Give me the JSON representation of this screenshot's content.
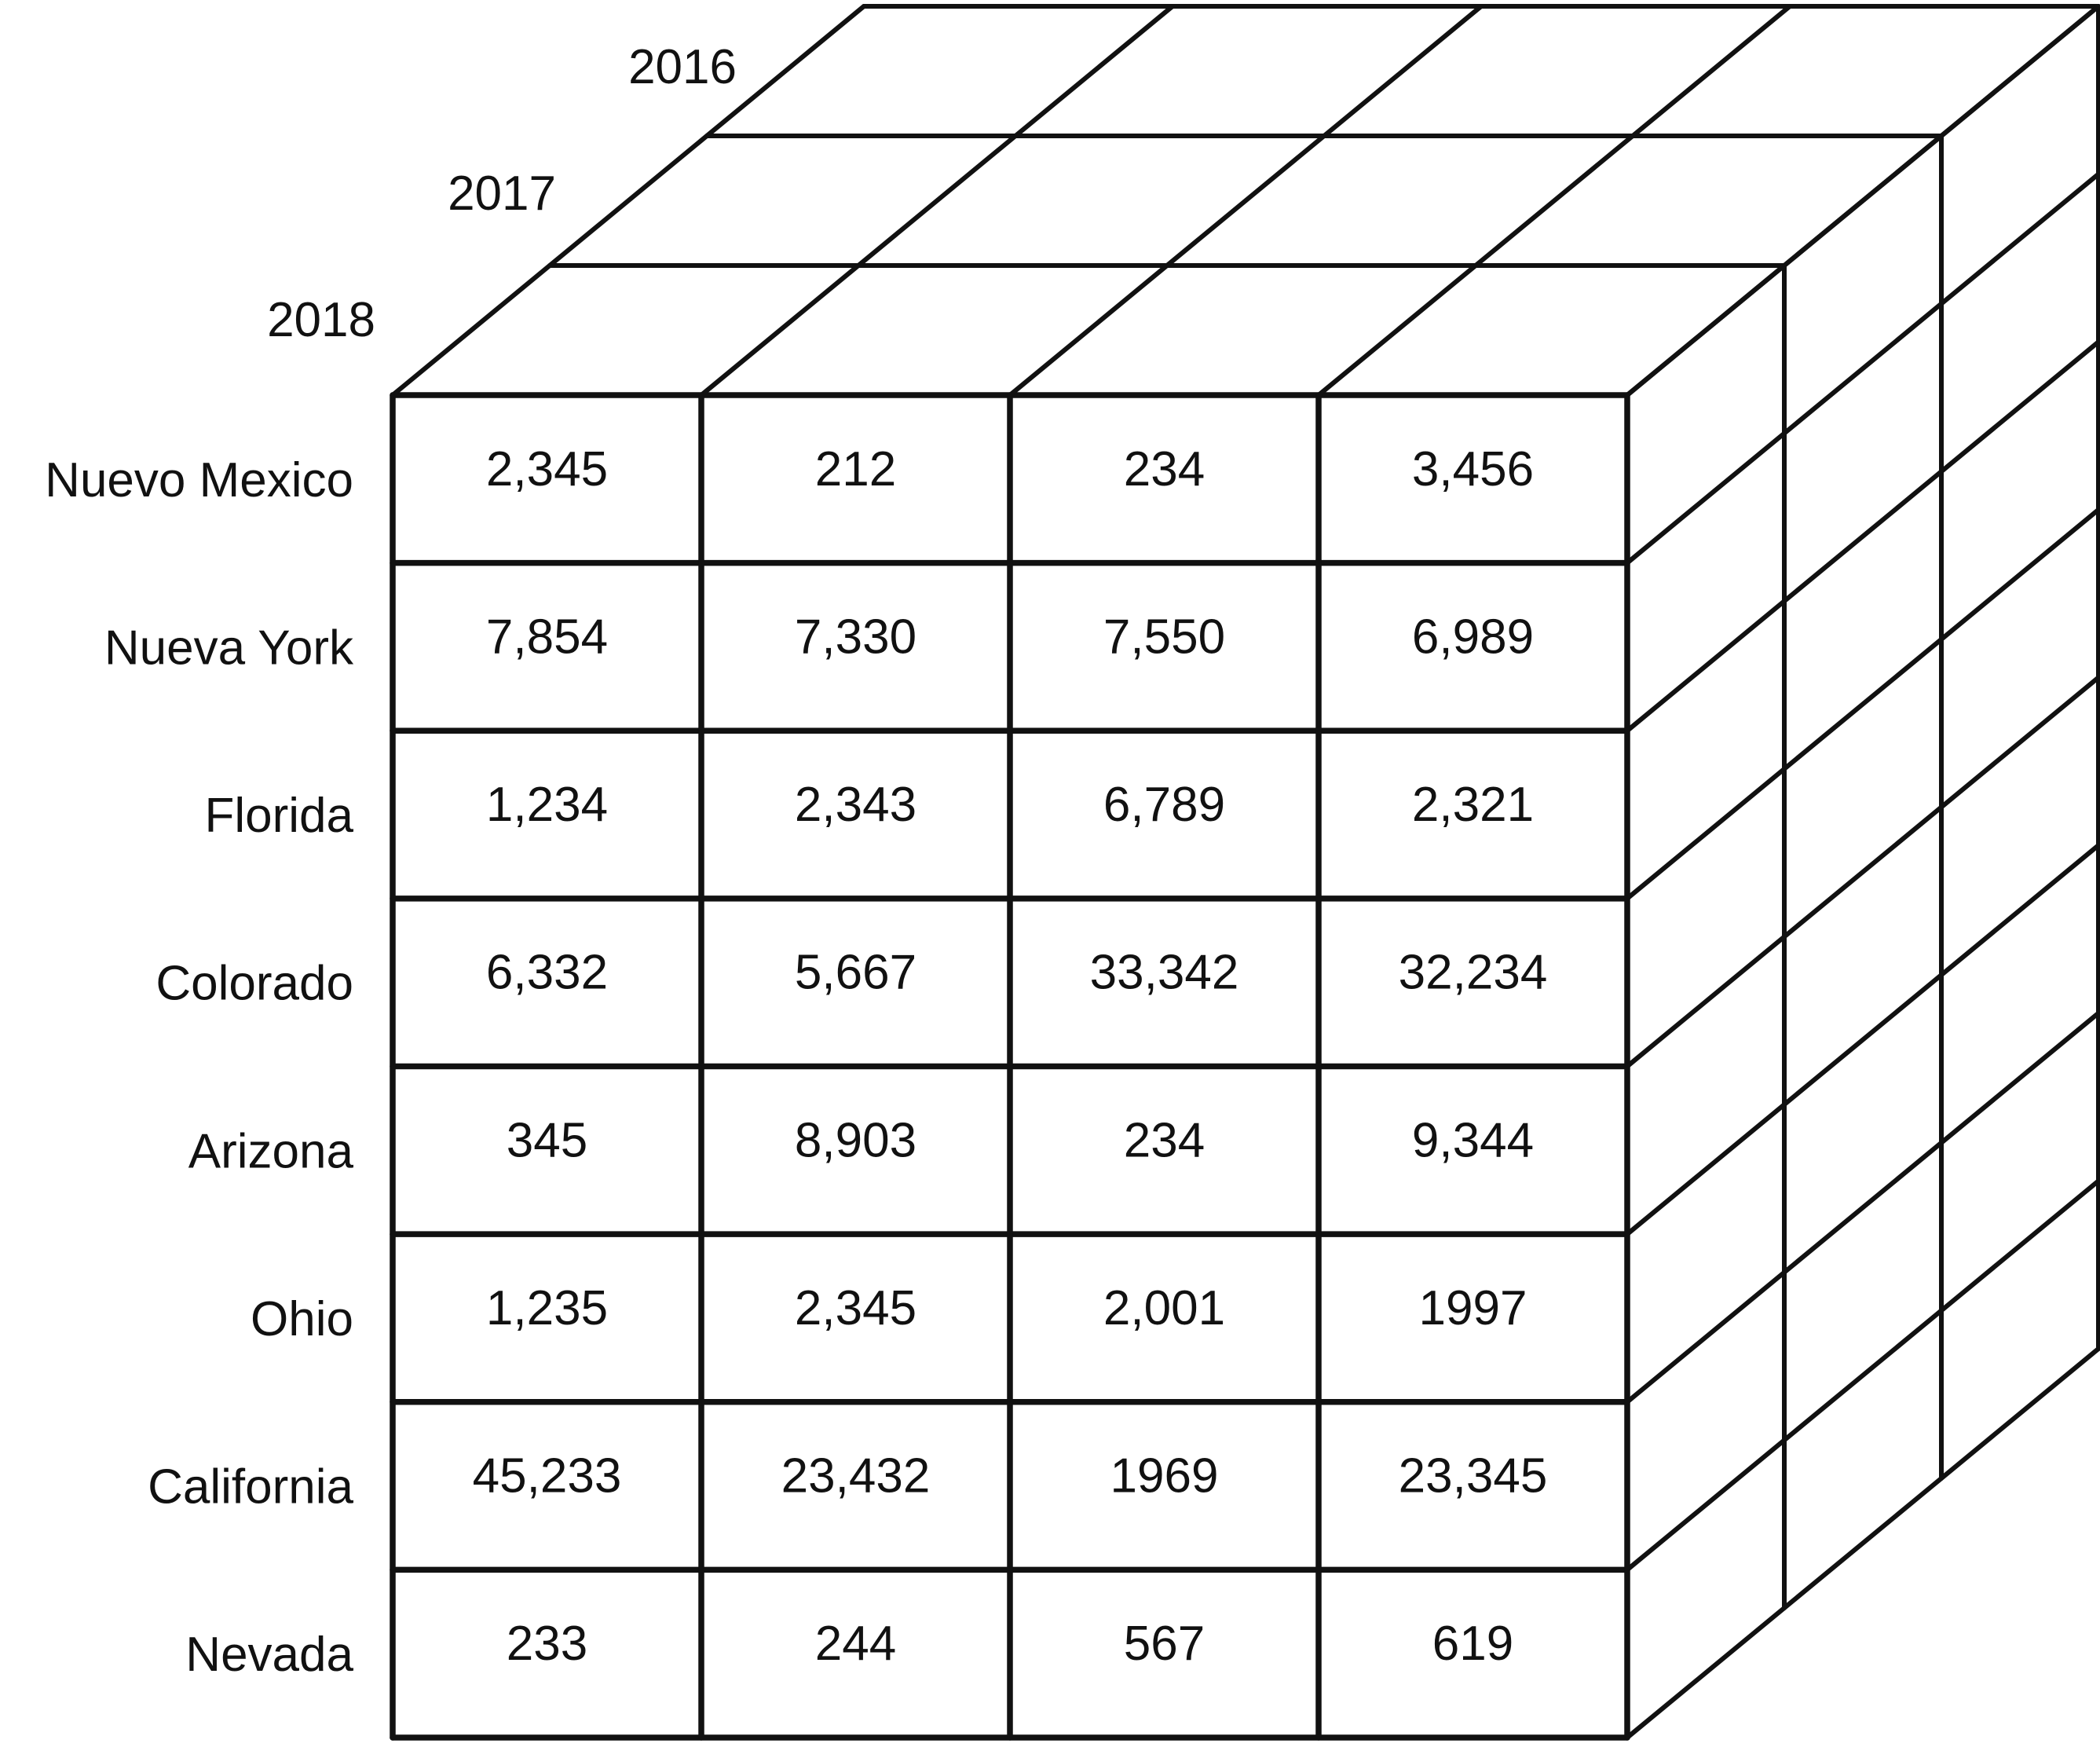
{
  "cube": {
    "depth_labels": [
      "2018",
      "2017",
      "2016"
    ],
    "rows": [
      {
        "label": "Nuevo Mexico",
        "values": [
          "2,345",
          "212",
          "234",
          "3,456"
        ]
      },
      {
        "label": "Nueva York",
        "values": [
          "7,854",
          "7,330",
          "7,550",
          "6,989"
        ]
      },
      {
        "label": "Florida",
        "values": [
          "1,234",
          "2,343",
          "6,789",
          "2,321"
        ]
      },
      {
        "label": "Colorado",
        "values": [
          "6,332",
          "5,667",
          "33,342",
          "32,234"
        ]
      },
      {
        "label": "Arizona",
        "values": [
          "345",
          "8,903",
          "234",
          "9,344"
        ]
      },
      {
        "label": "Ohio",
        "values": [
          "1,235",
          "2,345",
          "2,001",
          "1997"
        ]
      },
      {
        "label": "California",
        "values": [
          "45,233",
          "23,432",
          "1969",
          "23,345"
        ]
      },
      {
        "label": "Nevada",
        "values": [
          "233",
          "244",
          "567",
          "619"
        ]
      }
    ],
    "line_color": "#111111",
    "background_color": "#ffffff"
  }
}
